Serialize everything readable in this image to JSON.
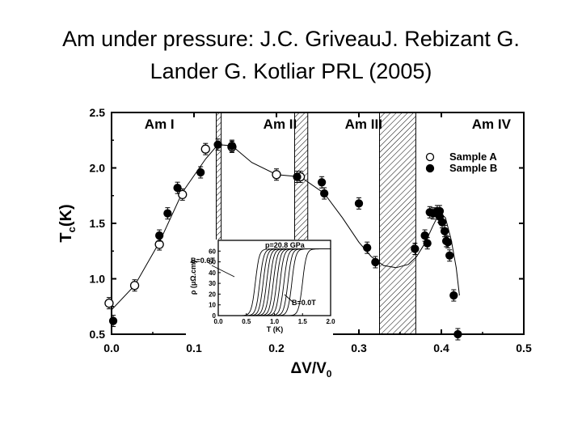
{
  "slide": {
    "title_line1": "Am under pressure: J.C.  GriveauJ.  Rebizant G.",
    "title_line2": "Lander G.  Kotliar PRL (2005)"
  },
  "chart_data": [
    {
      "type": "scatter",
      "title": "",
      "xlabel": "ΔV/V",
      "xlabel_sub": "0",
      "ylabel": "T",
      "ylabel_sub": "c",
      "ylabel_unit": "(K)",
      "xlim": [
        0.0,
        0.5
      ],
      "ylim": [
        0.5,
        2.5
      ],
      "xticks": [
        "0.0",
        "0.1",
        "0.2",
        "0.3",
        "0.4",
        "0.5"
      ],
      "yticks": [
        "0.5",
        "1.0",
        "1.5",
        "2.0",
        "2.5"
      ],
      "grid": false,
      "legend_position": "top-right",
      "phases": [
        {
          "label": "Am I",
          "x": 0.04
        },
        {
          "label": "Am II",
          "x": 0.184
        },
        {
          "label": "Am III",
          "x": 0.283
        },
        {
          "label": "Am IV",
          "x": 0.437
        }
      ],
      "phase_boundaries": [
        [
          0.127,
          0.133
        ],
        [
          0.222,
          0.238
        ],
        [
          0.325,
          0.369
        ]
      ],
      "series": [
        {
          "name": "Sample A",
          "marker": "open-circle",
          "x": [
            -0.003,
            0.028,
            0.058,
            0.086,
            0.114,
            0.146,
            0.2,
            0.229
          ],
          "y": [
            0.78,
            0.94,
            1.31,
            1.76,
            2.17,
            2.19,
            1.94,
            1.92
          ]
        },
        {
          "name": "Sample B",
          "marker": "filled-circle",
          "x": [
            0.002,
            0.058,
            0.068,
            0.08,
            0.108,
            0.129,
            0.146,
            0.225,
            0.255,
            0.258,
            0.3,
            0.31,
            0.32,
            0.368,
            0.38,
            0.383,
            0.386,
            0.39,
            0.395,
            0.398,
            0.398,
            0.401,
            0.404,
            0.406,
            0.408,
            0.41,
            0.415,
            0.42
          ],
          "y": [
            0.62,
            1.39,
            1.59,
            1.82,
            1.96,
            2.21,
            2.2,
            1.92,
            1.87,
            1.77,
            1.68,
            1.28,
            1.15,
            1.27,
            1.39,
            1.32,
            1.6,
            1.59,
            1.61,
            1.56,
            1.61,
            1.51,
            1.43,
            1.34,
            1.33,
            1.21,
            0.85,
            0.5
          ]
        }
      ],
      "trend_line": {
        "x": [
          0.0,
          0.028,
          0.058,
          0.086,
          0.114,
          0.129,
          0.146,
          0.17,
          0.2,
          0.229,
          0.258,
          0.28,
          0.3,
          0.315,
          0.33,
          0.345,
          0.36,
          0.37,
          0.38,
          0.39,
          0.398,
          0.405,
          0.412,
          0.418,
          0.422
        ],
        "y": [
          0.72,
          0.94,
          1.33,
          1.78,
          2.08,
          2.21,
          2.2,
          2.05,
          1.94,
          1.92,
          1.77,
          1.55,
          1.33,
          1.2,
          1.12,
          1.1,
          1.13,
          1.2,
          1.32,
          1.48,
          1.6,
          1.55,
          1.35,
          1.1,
          0.85
        ]
      }
    },
    {
      "type": "line",
      "title": "",
      "xlabel": "T (K)",
      "ylabel": "ρ (μΩ.cm)",
      "xlim": [
        0.0,
        2.0
      ],
      "ylim": [
        0,
        70
      ],
      "xticks": [
        "0.0",
        "0.5",
        "1.0",
        "1.5",
        "2.0"
      ],
      "yticks": [
        "0",
        "10",
        "20",
        "30",
        "40",
        "50",
        "60"
      ],
      "annotations": [
        "p=20.8 GPa",
        "B=0.6T",
        "B=0.0T"
      ],
      "field_curves": {
        "plateau": 62,
        "midpoint_T": [
          0.66,
          0.74,
          0.8,
          0.86,
          0.92,
          0.98,
          1.04,
          1.1,
          1.17,
          1.24,
          1.31,
          1.5
        ]
      }
    }
  ],
  "colors": {
    "ink": "#000000",
    "background": "#ffffff"
  }
}
